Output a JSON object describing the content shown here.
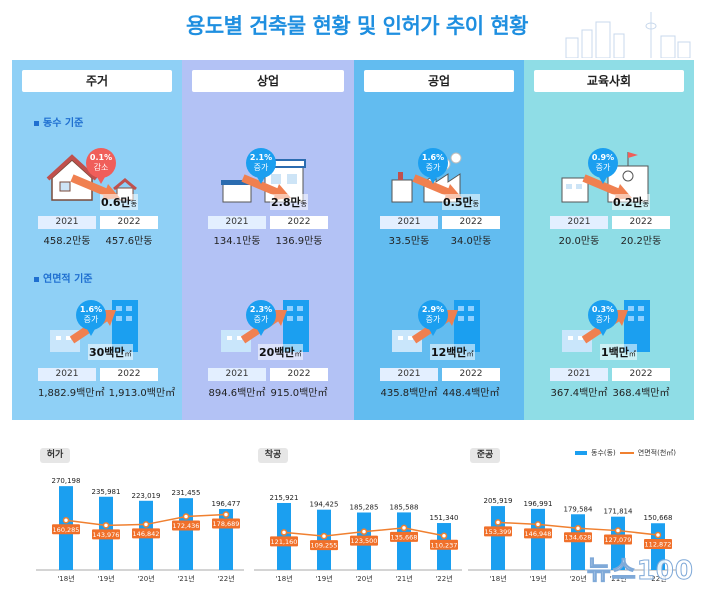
{
  "header": {
    "title": "용도별 건축물 현황 및 인허가 추이 현황"
  },
  "sections": {
    "count_label": "동수 기준",
    "area_label": "연면적 기준"
  },
  "panels": [
    {
      "name": "주거",
      "bg": "#8fd0f6",
      "count": {
        "badge_pct": "0.1%",
        "badge_dir": "감소",
        "badge_color": "#f05e5a",
        "delta": "0.6만",
        "delta_unit": "동",
        "y2021": "2021",
        "y2022": "2022",
        "v2021": "458.2만동",
        "v2022": "457.6만동"
      },
      "area": {
        "badge_pct": "1.6%",
        "badge_dir": "증가",
        "delta": "30백만",
        "delta_unit": "㎡",
        "y2021": "2021",
        "y2022": "2022",
        "v2021": "1,882.9백만㎡",
        "v2022": "1,913.0백만㎡"
      }
    },
    {
      "name": "상업",
      "bg": "#b3c2f5",
      "count": {
        "badge_pct": "2.1%",
        "badge_dir": "증가",
        "delta": "2.8만",
        "delta_unit": "동",
        "y2021": "2021",
        "y2022": "2022",
        "v2021": "134.1만동",
        "v2022": "136.9만동"
      },
      "area": {
        "badge_pct": "2.3%",
        "badge_dir": "증가",
        "delta": "20백만",
        "delta_unit": "㎡",
        "y2021": "2021",
        "y2022": "2022",
        "v2021": "894.6백만㎡",
        "v2022": "915.0백만㎡"
      }
    },
    {
      "name": "공업",
      "bg": "#62bcf0",
      "count": {
        "badge_pct": "1.6%",
        "badge_dir": "증가",
        "delta": "0.5만",
        "delta_unit": "동",
        "y2021": "2021",
        "y2022": "2022",
        "v2021": "33.5만동",
        "v2022": "34.0만동"
      },
      "area": {
        "badge_pct": "2.9%",
        "badge_dir": "증가",
        "delta": "12백만",
        "delta_unit": "㎡",
        "y2021": "2021",
        "y2022": "2022",
        "v2021": "435.8백만㎡",
        "v2022": "448.4백만㎡"
      }
    },
    {
      "name": "교육사회",
      "bg": "#8fdde6",
      "count": {
        "badge_pct": "0.9%",
        "badge_dir": "증가",
        "delta": "0.2만",
        "delta_unit": "동",
        "y2021": "2021",
        "y2022": "2022",
        "v2021": "20.0만동",
        "v2022": "20.2만동"
      },
      "area": {
        "badge_pct": "0.3%",
        "badge_dir": "증가",
        "delta": "1백만",
        "delta_unit": "㎡",
        "y2021": "2021",
        "y2022": "2022",
        "v2021": "367.4백만㎡",
        "v2022": "368.4백만㎡"
      }
    }
  ],
  "colors": {
    "bar": "#1b9ff0",
    "line": "#f08030",
    "label_box": "#f0702a"
  },
  "legend": {
    "bar": "동수(동)",
    "line": "연면적(천㎡)"
  },
  "watermark": "뉴스100",
  "chart_data": [
    {
      "type": "bar",
      "title": "허가",
      "categories": [
        "'18년",
        "'19년",
        "'20년",
        "'21년",
        "'22년"
      ],
      "series": [
        {
          "name": "동수(동)",
          "values": [
            270198,
            235981,
            223019,
            231455,
            196477
          ]
        },
        {
          "name": "연면적(천㎡)",
          "values": [
            160285,
            143976,
            146842,
            172436,
            178689
          ]
        }
      ],
      "ylim": [
        0,
        290000
      ]
    },
    {
      "type": "bar",
      "title": "착공",
      "categories": [
        "'18년",
        "'19년",
        "'20년",
        "'21년",
        "'22년"
      ],
      "series": [
        {
          "name": "동수(동)",
          "values": [
            215921,
            194425,
            185285,
            185588,
            151340
          ]
        },
        {
          "name": "연면적(천㎡)",
          "values": [
            121160,
            109255,
            123500,
            135668,
            110237
          ]
        }
      ],
      "ylim": [
        0,
        290000
      ]
    },
    {
      "type": "bar",
      "title": "준공",
      "categories": [
        "'18년",
        "'19년",
        "'20년",
        "'21년",
        "'22년"
      ],
      "series": [
        {
          "name": "동수(동)",
          "values": [
            205919,
            196991,
            179584,
            171814,
            150668
          ]
        },
        {
          "name": "연면적(천㎡)",
          "values": [
            153399,
            146948,
            134628,
            127079,
            112872
          ]
        }
      ],
      "ylim": [
        0,
        290000
      ]
    }
  ]
}
